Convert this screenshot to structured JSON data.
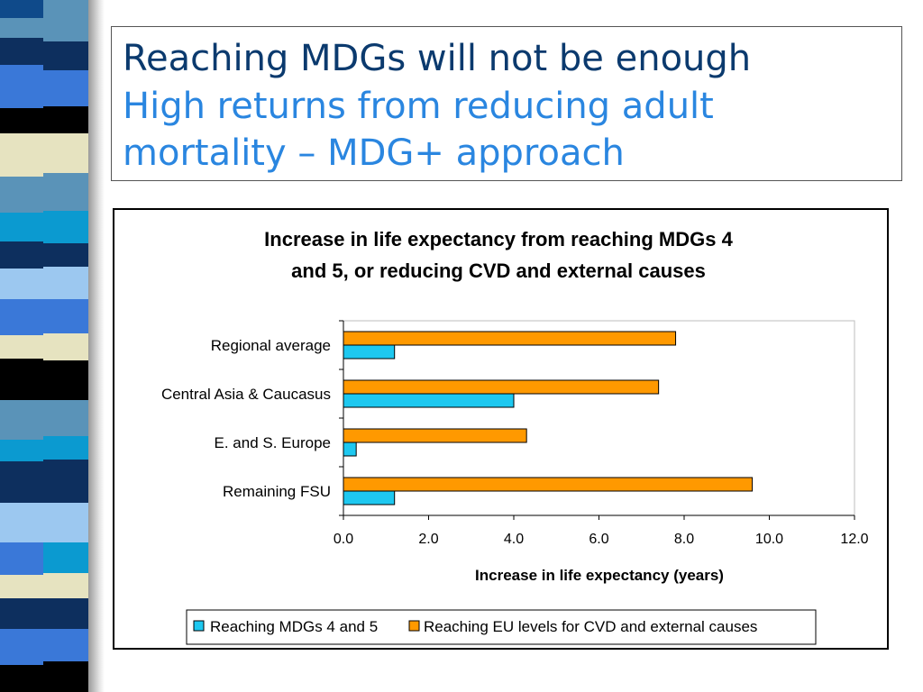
{
  "slide": {
    "title_line1": "Reaching MDGs will not be enough",
    "title_line2": "High returns from reducing adult mortality – MDG+ approach",
    "title_color": "#0b3a6e",
    "subtitle_color": "#2a86e0"
  },
  "chart_data": {
    "type": "bar",
    "orientation": "horizontal",
    "title_lines": [
      "Increase in life expectancy from reaching MDGs  4",
      "and 5, or reducing CVD and external causes"
    ],
    "categories": [
      "Regional average",
      "Central Asia & Caucasus",
      "E. and S. Europe",
      "Remaining FSU"
    ],
    "series": [
      {
        "name": "Reaching MDGs 4 and 5",
        "color": "#1ec8f0",
        "values": [
          1.2,
          4.0,
          0.3,
          1.2
        ]
      },
      {
        "name": "Reaching EU levels for CVD and external causes",
        "color": "#ff9900",
        "values": [
          7.8,
          7.4,
          4.3,
          9.6
        ]
      }
    ],
    "xlabel": "Increase in life expectancy (years)",
    "xlim": [
      0,
      12
    ],
    "ticks": [
      "0.0",
      "2.0",
      "4.0",
      "6.0",
      "8.0",
      "10.0",
      "12.0"
    ],
    "grid": false,
    "legend_position": "bottom"
  }
}
